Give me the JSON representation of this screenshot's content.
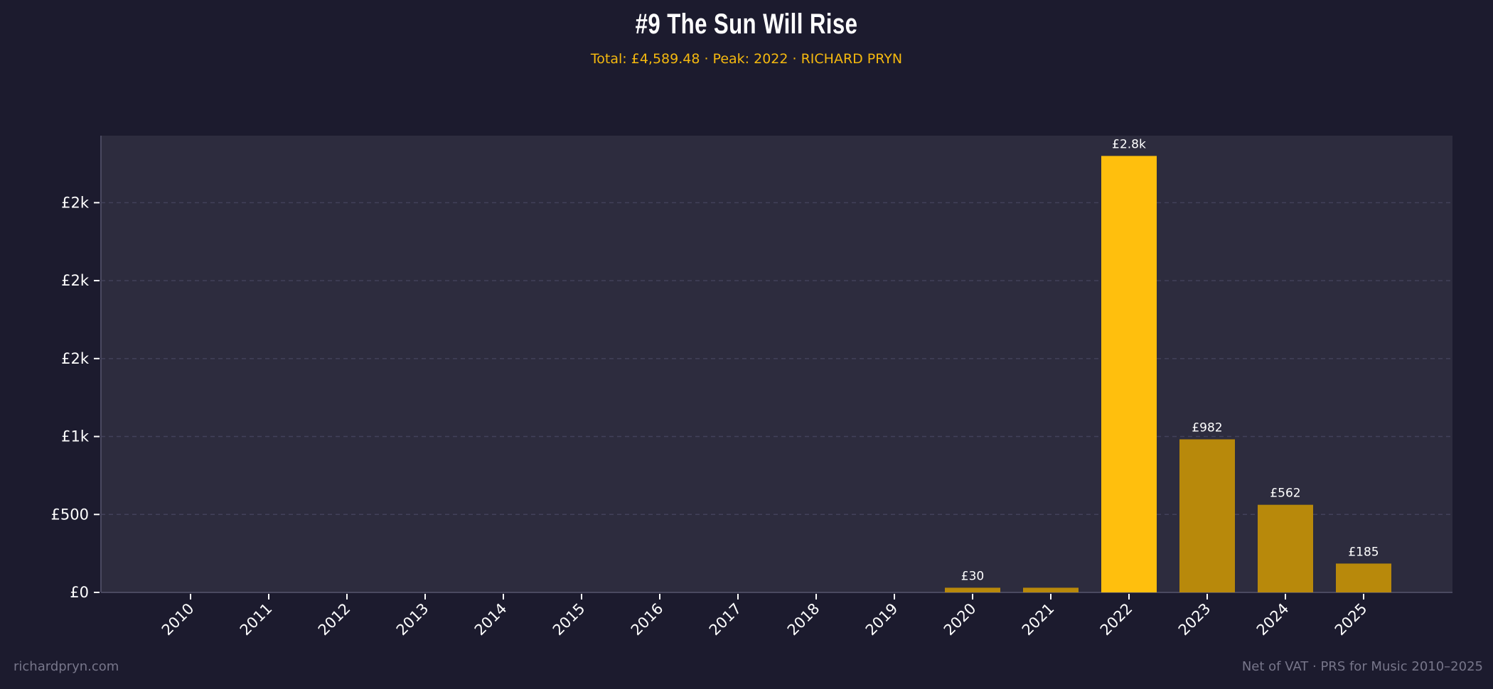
{
  "header": {
    "title": "#9  The Sun Will Rise",
    "subtitle": "Total: £4,589.48  ·  Peak: 2022  ·  RICHARD PRYN"
  },
  "footer": {
    "left": "richardpryn.com",
    "right": "Net of VAT  ·  PRS for Music 2010–2025"
  },
  "colors": {
    "background": "#1c1b2e",
    "plot_background": "#2d2c3e",
    "bar": "#b8890b",
    "peak_bar": "#ffbf0d",
    "text": "#ffffff",
    "accent": "#f5b90f"
  },
  "chart_data": {
    "type": "bar",
    "title": "#9  The Sun Will Rise",
    "xlabel": "",
    "ylabel": "",
    "categories": [
      "2010",
      "2011",
      "2012",
      "2013",
      "2014",
      "2015",
      "2016",
      "2017",
      "2018",
      "2019",
      "2020",
      "2021",
      "2022",
      "2023",
      "2024",
      "2025"
    ],
    "values": [
      0,
      0,
      0,
      0,
      0,
      0,
      0,
      0,
      0,
      0,
      30,
      30,
      2800,
      982,
      562,
      185
    ],
    "data_labels": [
      "",
      "",
      "",
      "",
      "",
      "",
      "",
      "",
      "",
      "",
      "£30",
      "",
      "£2.8k",
      "£982",
      "£562",
      "£185"
    ],
    "peak_category": "2022",
    "ylim": [
      0,
      2930
    ],
    "yticks": [
      0,
      500,
      1000,
      1500,
      2000,
      2500
    ],
    "ytick_labels": [
      "£0",
      "£500",
      "£1k",
      "£2k",
      "£2k",
      "£2k"
    ],
    "grid": "horizontal-dashed",
    "legend": "none"
  }
}
